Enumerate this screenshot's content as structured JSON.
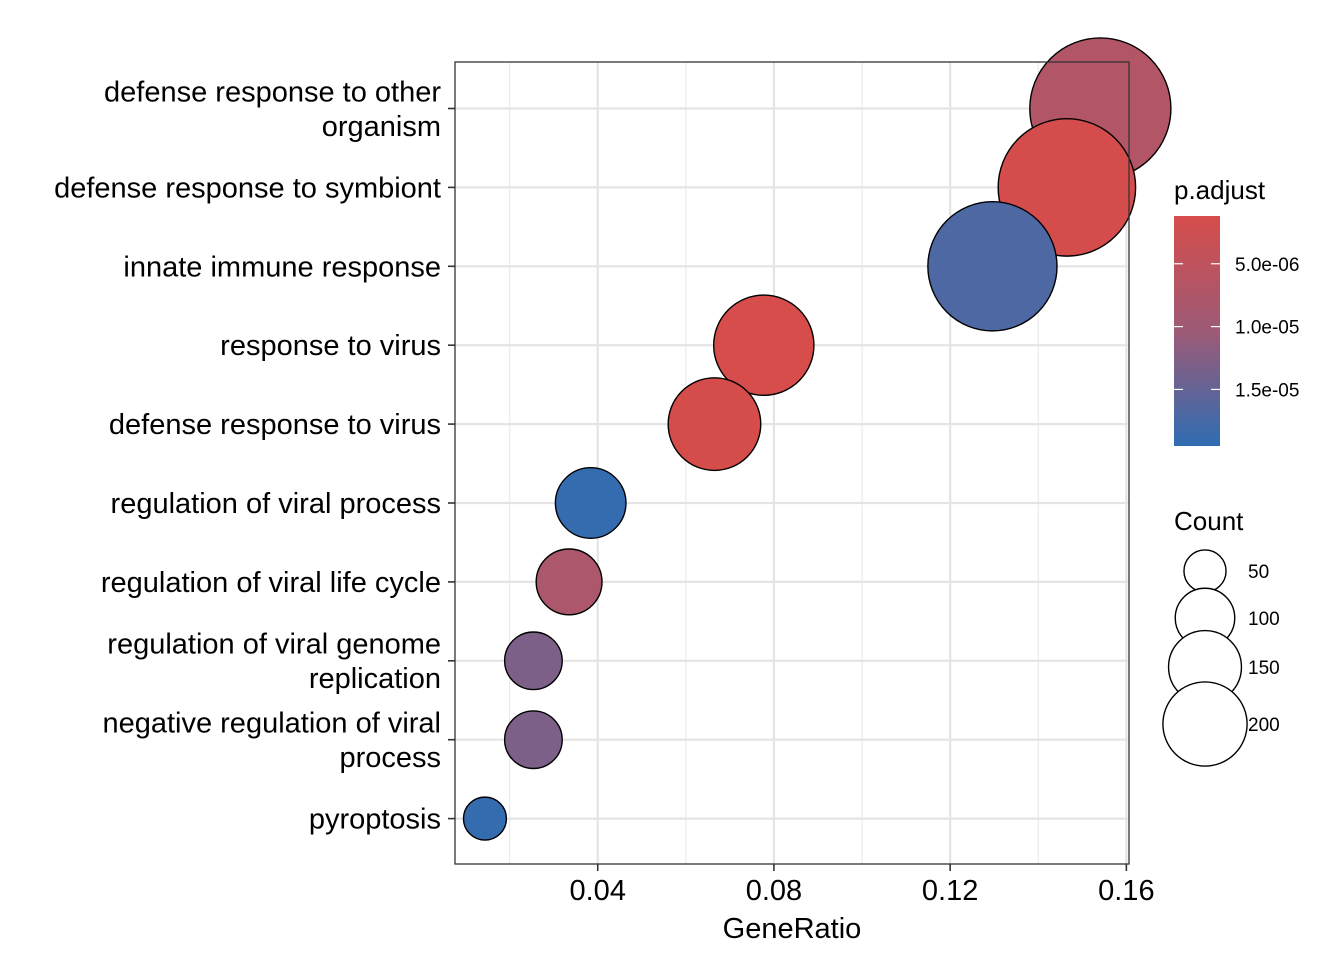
{
  "chart_data": {
    "type": "scatter",
    "title": "",
    "xlabel": "GeneRatio",
    "ylabel": "",
    "xlim": [
      0.0076,
      0.1606
    ],
    "x_ticks": [
      0.04,
      0.08,
      0.12,
      0.16
    ],
    "x_tick_labels": [
      "0.04",
      "0.08",
      "0.12",
      "0.16"
    ],
    "grid": true,
    "categories": [
      [
        "defense response to other",
        "organism"
      ],
      [
        "defense response to symbiont"
      ],
      [
        "innate immune response"
      ],
      [
        "response to virus"
      ],
      [
        "defense response to virus"
      ],
      [
        "regulation of viral process"
      ],
      [
        "regulation of viral life cycle"
      ],
      [
        "regulation of viral genome",
        "replication"
      ],
      [
        "negative regulation of viral",
        "process"
      ],
      [
        "pyroptosis"
      ]
    ],
    "points": [
      {
        "gene_ratio": 0.1541,
        "count": 216,
        "p_adjust": 7e-06
      },
      {
        "gene_ratio": 0.1465,
        "count": 205,
        "p_adjust": 1.5e-06
      },
      {
        "gene_ratio": 0.1296,
        "count": 181,
        "p_adjust": 1.7e-05
      },
      {
        "gene_ratio": 0.0777,
        "count": 109,
        "p_adjust": 1.2e-06
      },
      {
        "gene_ratio": 0.0665,
        "count": 93,
        "p_adjust": 1.3e-06
      },
      {
        "gene_ratio": 0.0384,
        "count": 54,
        "p_adjust": 1.9e-05
      },
      {
        "gene_ratio": 0.0335,
        "count": 47,
        "p_adjust": 8e-06
      },
      {
        "gene_ratio": 0.0254,
        "count": 36,
        "p_adjust": 1.3e-05
      },
      {
        "gene_ratio": 0.0254,
        "count": 36,
        "p_adjust": 1.3e-05
      },
      {
        "gene_ratio": 0.0144,
        "count": 20,
        "p_adjust": 1.9e-05
      }
    ],
    "legend_color": {
      "title": "p.adjust",
      "position": "right",
      "range": [
        1.2e-06,
        1.95e-05
      ],
      "low_value_color": "#d64d4b",
      "high_value_color": "#2f6db3",
      "breaks": [
        5e-06,
        1e-05,
        1.5e-05
      ],
      "break_labels": [
        "5.0e-06",
        "1.0e-05",
        "1.5e-05"
      ]
    },
    "legend_size": {
      "title": "Count",
      "position": "right",
      "breaks": [
        50,
        100,
        150,
        200
      ],
      "break_labels": [
        "50",
        "100",
        "150",
        "200"
      ]
    }
  }
}
